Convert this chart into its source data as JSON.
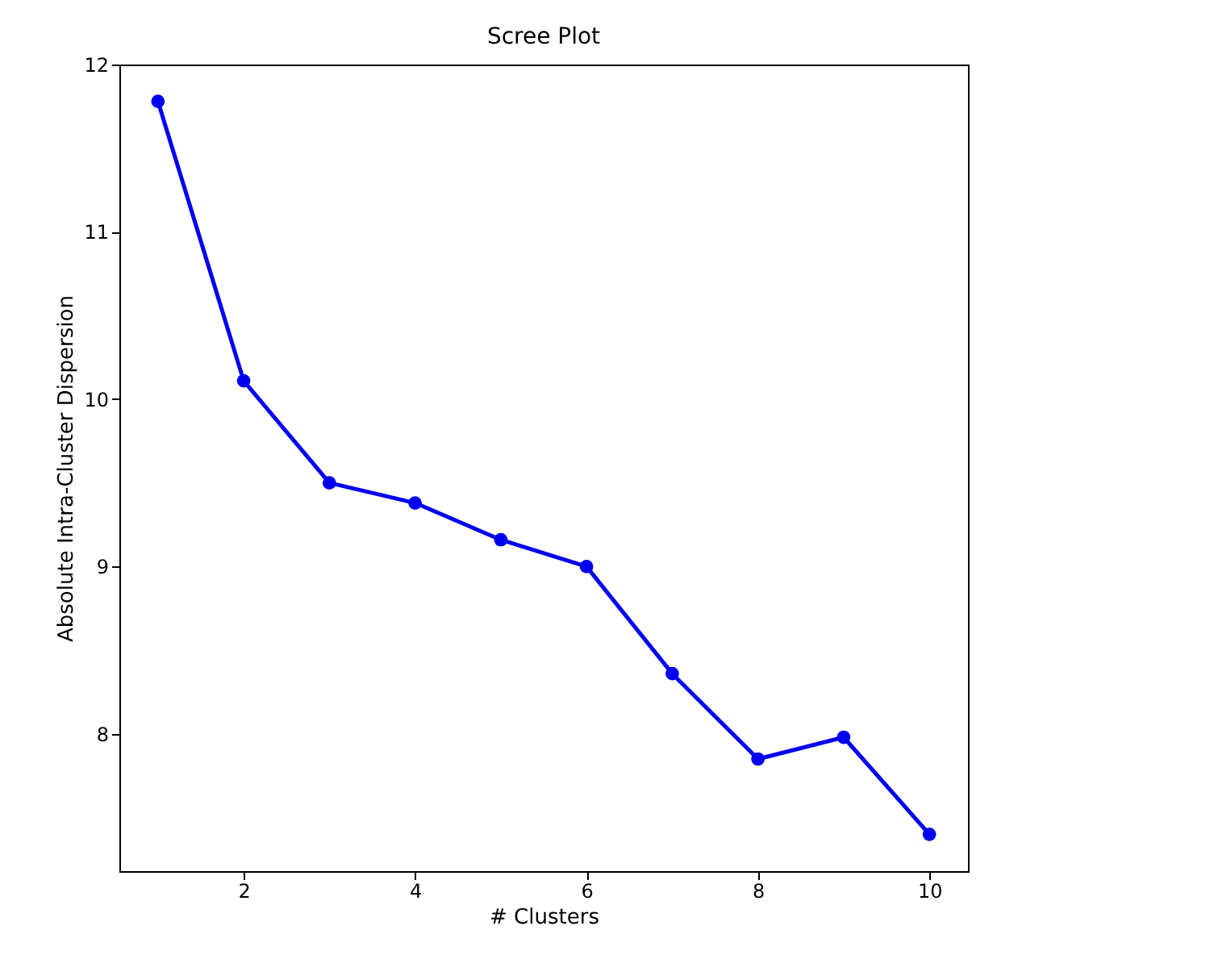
{
  "chart_data": {
    "type": "line",
    "title": "Scree Plot",
    "xlabel": "# Clusters",
    "ylabel": "Absolute Intra-Cluster Dispersion",
    "x": [
      1,
      2,
      3,
      4,
      5,
      6,
      7,
      8,
      9,
      10
    ],
    "series": [
      {
        "color": "#0000ee",
        "values": [
          11.78,
          10.11,
          9.5,
          9.38,
          9.16,
          9.0,
          8.36,
          7.85,
          7.98,
          7.4
        ]
      }
    ],
    "xlim": [
      0.55,
      10.45
    ],
    "xticks": [
      2,
      4,
      6,
      8,
      10
    ],
    "ylim": [
      7.18,
      12.0
    ],
    "yticks": [
      8,
      9,
      10,
      11,
      12
    ],
    "grid": false,
    "marker": "circle",
    "line_style": "solid"
  }
}
